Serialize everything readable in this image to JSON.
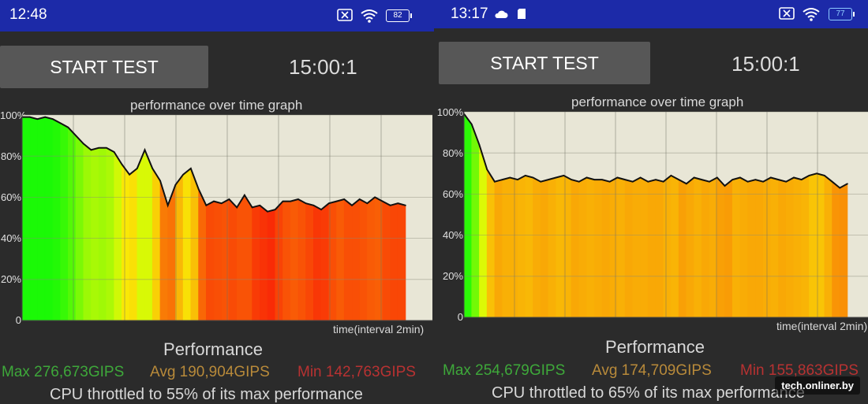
{
  "left": {
    "status_time": "12:48",
    "battery": "82",
    "start_label": "START TEST",
    "timer": "15:00:1",
    "graph_title": "performance over time graph",
    "y_ticks": [
      "100%",
      "80%",
      "60%",
      "40%",
      "20%",
      "0"
    ],
    "x_label": "time(interval 2min)",
    "performance_label": "Performance",
    "max": "Max 276,673GIPS",
    "avg": "Avg 190,904GIPS",
    "min": "Min 142,763GIPS",
    "throttle_text": "CPU throttled to 55% of its max performance"
  },
  "right": {
    "status_time": "13:17",
    "battery": "77",
    "start_label": "START TEST",
    "timer": "15:00:1",
    "graph_title": "performance over time graph",
    "y_ticks": [
      "100%",
      "80%",
      "60%",
      "40%",
      "20%",
      "0"
    ],
    "x_label": "time(interval 2min)",
    "performance_label": "Performance",
    "max": "Max 254,679GIPS",
    "avg": "Avg 174,709GIPS",
    "min": "Min 155,863GIPS",
    "throttle_text": "CPU throttled to 65% of its max performance"
  },
  "watermark": "tech.onliner.by",
  "colors": {
    "status_bar": "#1c2aa8",
    "background": "#2b2b2b",
    "plot_background": "#e8e6d6",
    "max_green": "#3ea83a",
    "avg_orange": "#b88a3a",
    "min_red": "#b83232"
  },
  "chart_data": [
    {
      "type": "area",
      "title": "performance over time graph",
      "xlabel": "time(interval 2min)",
      "ylabel": "",
      "ylim": [
        0,
        100
      ],
      "x": [
        0,
        2,
        4,
        6,
        8,
        10,
        12,
        14,
        16,
        18,
        20,
        22,
        24,
        26,
        28,
        30,
        32,
        34,
        36,
        38,
        40,
        42,
        44,
        46,
        48,
        50,
        52,
        54,
        56,
        58,
        60,
        62,
        64,
        66,
        68,
        70,
        72,
        74,
        76,
        78,
        80,
        82,
        84,
        86,
        88,
        90,
        92,
        94,
        96,
        98,
        100
      ],
      "series": [
        {
          "values": [
            99,
            99,
            98,
            99,
            98,
            96,
            94,
            90,
            86,
            83,
            84,
            84,
            82,
            76,
            71,
            74,
            83,
            74,
            68,
            56,
            66,
            71,
            74,
            64,
            56,
            58,
            57,
            59,
            55,
            61,
            55,
            56,
            53,
            54,
            58,
            58,
            59,
            57,
            56,
            54,
            57,
            58,
            59,
            56,
            59,
            57,
            60,
            58,
            56,
            57,
            56
          ]
        }
      ]
    },
    {
      "type": "area",
      "title": "performance over time graph",
      "xlabel": "time(interval 2min)",
      "ylabel": "",
      "ylim": [
        0,
        100
      ],
      "x": [
        0,
        2,
        4,
        6,
        8,
        10,
        12,
        14,
        16,
        18,
        20,
        22,
        24,
        26,
        28,
        30,
        32,
        34,
        36,
        38,
        40,
        42,
        44,
        46,
        48,
        50,
        52,
        54,
        56,
        58,
        60,
        62,
        64,
        66,
        68,
        70,
        72,
        74,
        76,
        78,
        80,
        82,
        84,
        86,
        88,
        90,
        92,
        94,
        96,
        98,
        100
      ],
      "series": [
        {
          "values": [
            99,
            94,
            84,
            72,
            66,
            67,
            68,
            67,
            69,
            68,
            66,
            67,
            68,
            69,
            67,
            66,
            68,
            67,
            67,
            66,
            68,
            67,
            66,
            68,
            66,
            67,
            66,
            69,
            67,
            65,
            68,
            67,
            66,
            68,
            64,
            67,
            68,
            66,
            67,
            66,
            68,
            67,
            66,
            68,
            67,
            69,
            70,
            69,
            66,
            63,
            65
          ]
        }
      ]
    }
  ]
}
